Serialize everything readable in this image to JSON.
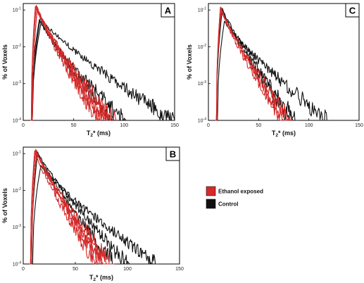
{
  "legend": {
    "items": [
      {
        "label": "Ethanol exposed",
        "color": "#d42a2a"
      },
      {
        "label": "Control",
        "color": "#111111"
      }
    ]
  },
  "chart_data": [
    {
      "panel": "A",
      "type": "line",
      "xlabel_main": "T",
      "xlabel_sub": "2",
      "xlabel_rest": "* (ms)",
      "ylabel": "% of Voxels",
      "xlim": [
        0,
        150
      ],
      "xticks": [
        "0",
        "50",
        "100",
        "150"
      ],
      "yscale": "log",
      "ylim": [
        0.0001,
        0.15
      ],
      "yticks": [
        {
          "base": "10",
          "exp": "-1",
          "value": 0.1
        },
        {
          "base": "10",
          "exp": "-2",
          "value": 0.01
        },
        {
          "base": "10",
          "exp": "-3",
          "value": 0.001
        },
        {
          "base": "10",
          "exp": "-4",
          "value": 0.0001
        }
      ],
      "series": [
        {
          "group": "ethanol",
          "color": "#d42a2a",
          "onset": 8,
          "peak_x": 13,
          "peak_y": 0.135,
          "end_x": 78,
          "noise": 0.1
        },
        {
          "group": "ethanol",
          "color": "#d42a2a",
          "onset": 8,
          "peak_x": 13,
          "peak_y": 0.13,
          "end_x": 80,
          "noise": 0.12
        },
        {
          "group": "ethanol",
          "color": "#d42a2a",
          "onset": 9,
          "peak_x": 14,
          "peak_y": 0.12,
          "end_x": 85,
          "noise": 0.12
        },
        {
          "group": "ethanol",
          "color": "#d42a2a",
          "onset": 9,
          "peak_x": 14,
          "peak_y": 0.11,
          "end_x": 74,
          "noise": 0.15
        },
        {
          "group": "ethanol",
          "color": "#d42a2a",
          "onset": 8,
          "peak_x": 12,
          "peak_y": 0.125,
          "end_x": 90,
          "noise": 0.15
        },
        {
          "group": "control",
          "color": "#111111",
          "onset": 9,
          "peak_x": 17,
          "peak_y": 0.06,
          "end_x": 148,
          "noise": 0.14
        },
        {
          "group": "control",
          "color": "#111111",
          "onset": 8,
          "peak_x": 16,
          "peak_y": 0.055,
          "end_x": 100,
          "noise": 0.14
        },
        {
          "group": "control",
          "color": "#111111",
          "onset": 9,
          "peak_x": 18,
          "peak_y": 0.05,
          "end_x": 88,
          "noise": 0.14
        }
      ]
    },
    {
      "panel": "B",
      "type": "line",
      "xlabel_main": "T",
      "xlabel_sub": "2",
      "xlabel_rest": "* (ms)",
      "ylabel": "% of Voxels",
      "xlim": [
        0,
        150
      ],
      "xticks": [
        "0",
        "50",
        "100",
        "150"
      ],
      "yscale": "log",
      "ylim": [
        0.0001,
        0.15
      ],
      "yticks": [
        {
          "base": "10",
          "exp": "-1",
          "value": 0.1
        },
        {
          "base": "10",
          "exp": "-2",
          "value": 0.01
        },
        {
          "base": "10",
          "exp": "-3",
          "value": 0.001
        },
        {
          "base": "10",
          "exp": "-4",
          "value": 0.0001
        }
      ],
      "series": [
        {
          "group": "ethanol",
          "color": "#d42a2a",
          "onset": 7,
          "peak_x": 12,
          "peak_y": 0.13,
          "end_x": 78,
          "noise": 0.1
        },
        {
          "group": "ethanol",
          "color": "#d42a2a",
          "onset": 7,
          "peak_x": 12,
          "peak_y": 0.125,
          "end_x": 82,
          "noise": 0.12
        },
        {
          "group": "ethanol",
          "color": "#d42a2a",
          "onset": 8,
          "peak_x": 13,
          "peak_y": 0.12,
          "end_x": 75,
          "noise": 0.13
        },
        {
          "group": "ethanol",
          "color": "#d42a2a",
          "onset": 8,
          "peak_x": 13,
          "peak_y": 0.115,
          "end_x": 85,
          "noise": 0.14
        },
        {
          "group": "ethanol",
          "color": "#d42a2a",
          "onset": 7,
          "peak_x": 11,
          "peak_y": 0.12,
          "end_x": 70,
          "noise": 0.14
        },
        {
          "group": "control",
          "color": "#111111",
          "onset": 9,
          "peak_x": 17,
          "peak_y": 0.048,
          "end_x": 128,
          "noise": 0.12
        },
        {
          "group": "control",
          "color": "#111111",
          "onset": 8,
          "peak_x": 14,
          "peak_y": 0.11,
          "end_x": 100,
          "noise": 0.13
        },
        {
          "group": "control",
          "color": "#111111",
          "onset": 8,
          "peak_x": 13,
          "peak_y": 0.12,
          "end_x": 88,
          "noise": 0.13
        }
      ]
    },
    {
      "panel": "C",
      "type": "line",
      "xlabel_main": "T",
      "xlabel_sub": "2",
      "xlabel_rest": "* (ms)",
      "ylabel": "% of Voxels",
      "xlim": [
        0,
        150
      ],
      "xticks": [
        "0",
        "50",
        "100",
        "150"
      ],
      "yscale": "log",
      "ylim": [
        0.0001,
        0.15
      ],
      "yticks": [
        {
          "base": "10",
          "exp": "-1",
          "value": 0.1
        },
        {
          "base": "10",
          "exp": "-2",
          "value": 0.01
        },
        {
          "base": "10",
          "exp": "-3",
          "value": 0.001
        },
        {
          "base": "10",
          "exp": "-4",
          "value": 0.0001
        }
      ],
      "series": [
        {
          "group": "ethanol",
          "color": "#d42a2a",
          "onset": 8,
          "peak_x": 12,
          "peak_y": 0.12,
          "end_x": 72,
          "noise": 0.1
        },
        {
          "group": "ethanol",
          "color": "#d42a2a",
          "onset": 8,
          "peak_x": 13,
          "peak_y": 0.115,
          "end_x": 76,
          "noise": 0.12
        },
        {
          "group": "ethanol",
          "color": "#d42a2a",
          "onset": 8,
          "peak_x": 12,
          "peak_y": 0.12,
          "end_x": 82,
          "noise": 0.14
        },
        {
          "group": "control",
          "color": "#111111",
          "onset": 9,
          "peak_x": 16,
          "peak_y": 0.05,
          "end_x": 118,
          "noise": 0.16
        },
        {
          "group": "control",
          "color": "#111111",
          "onset": 8,
          "peak_x": 14,
          "peak_y": 0.11,
          "end_x": 88,
          "noise": 0.14
        },
        {
          "group": "control",
          "color": "#111111",
          "onset": 8,
          "peak_x": 13,
          "peak_y": 0.115,
          "end_x": 82,
          "noise": 0.14
        }
      ]
    }
  ]
}
